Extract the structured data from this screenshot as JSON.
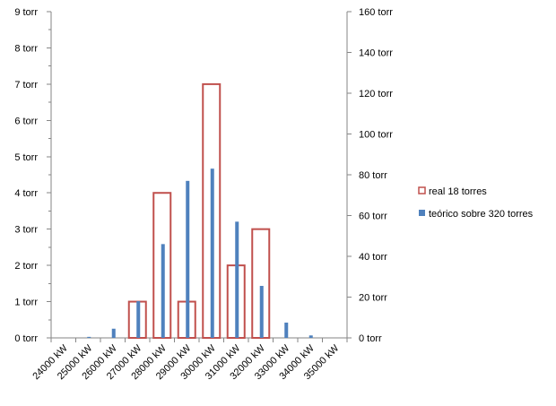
{
  "chart_data": {
    "type": "bar",
    "title": "",
    "categories": [
      "24000 kW",
      "25000 kW",
      "26000 kW",
      "27000 kW",
      "28000 kW",
      "29000 kW",
      "30000 kW",
      "31000 kW",
      "32000 kW",
      "33000 kW",
      "34000 kW",
      "35000 kW"
    ],
    "series": [
      {
        "name": "real 18 torres",
        "axis": "primary",
        "style": "outlined bar",
        "values": [
          0,
          0,
          0,
          1,
          4,
          1,
          7,
          2,
          3,
          0,
          0,
          0
        ]
      },
      {
        "name": "teórico sobre 320 torres",
        "axis": "secondary",
        "style": "filled thin bar",
        "values": [
          0,
          0.5,
          4.5,
          18,
          46,
          77,
          83,
          57,
          25.5,
          7.5,
          1.2,
          0
        ]
      }
    ],
    "y_primary": {
      "min": 0,
      "max": 9,
      "ticks": [
        "0 torr",
        "1 torr",
        "2 torr",
        "3 torr",
        "4 torr",
        "5 torr",
        "6 torr",
        "7 torr",
        "8 torr",
        "9 torr"
      ]
    },
    "y_secondary": {
      "min": 0,
      "max": 160,
      "ticks": [
        "0 torr",
        "20 torr",
        "40 torr",
        "60 torr",
        "80 torr",
        "100 torr",
        "120 torr",
        "140 torr",
        "160 torr"
      ]
    },
    "grid": false,
    "legend": {
      "position": "right",
      "entries": [
        "real 18 torres",
        "teórico sobre 320 torres"
      ]
    },
    "colors": {
      "real": "#c0504d",
      "teorico": "#4f81bd",
      "axis": "#868686"
    }
  }
}
